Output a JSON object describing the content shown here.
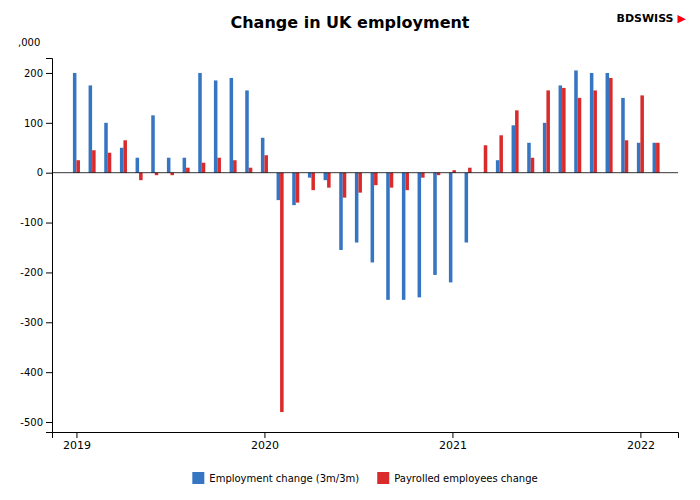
{
  "chart_data": {
    "type": "bar",
    "title": "Change in UK employment",
    "ylabel": ",000",
    "annotations": [
      {
        "text": "BDSWISS"
      },
      {
        "text": "▶",
        "color": "red"
      }
    ],
    "x": [
      2019,
      2019.0833333333333,
      2019.1666666666667,
      2019.25,
      2019.3333333333333,
      2019.4166666666667,
      2019.5,
      2019.5833333333333,
      2019.6666666666667,
      2019.75,
      2019.8333333333333,
      2019.9166666666667,
      2020,
      2020.0833333333333,
      2020.1666666666667,
      2020.25,
      2020.3333333333333,
      2020.4166666666667,
      2020.5,
      2020.5833333333333,
      2020.6666666666667,
      2020.75,
      2020.8333333333333,
      2020.9166666666667,
      2021,
      2021.0833333333333,
      2021.1666666666667,
      2021.25,
      2021.3333333333333,
      2021.4166666666667,
      2021.5,
      2021.5833333333333,
      2021.6666666666667,
      2021.75,
      2021.8333333333333,
      2021.9166666666667,
      2022,
      2022.0833333333333
    ],
    "series": [
      {
        "name": "Employment change (3m/3m)",
        "color": "#3575C2",
        "values": [
          200,
          175,
          100,
          50,
          30,
          115,
          30,
          30,
          200,
          185,
          190,
          165,
          70,
          -55,
          -65,
          -10,
          -15,
          -155,
          -140,
          -180,
          -255,
          -255,
          -250,
          -205,
          -220,
          -140,
          0,
          25,
          95,
          60,
          100,
          175,
          205,
          200,
          200,
          150,
          60,
          60
        ]
      },
      {
        "name": "Payrolled employees change",
        "color": "#D92B2B",
        "values": [
          25,
          45,
          40,
          65,
          -15,
          -5,
          -5,
          10,
          20,
          30,
          25,
          10,
          35,
          -480,
          -60,
          -35,
          -30,
          -50,
          -40,
          -25,
          -30,
          -35,
          -10,
          -5,
          5,
          10,
          55,
          75,
          125,
          30,
          165,
          170,
          150,
          165,
          190,
          65,
          155,
          60
        ]
      }
    ],
    "xlim": [
      2018.87,
      2022.2
    ],
    "xticks": [
      2019,
      2020,
      2021,
      2022
    ],
    "ylim": [
      -520,
      230
    ],
    "yticks": [
      -500,
      -400,
      -300,
      -200,
      -100,
      0,
      100,
      200
    ],
    "grid": false,
    "legend": "bottom"
  }
}
